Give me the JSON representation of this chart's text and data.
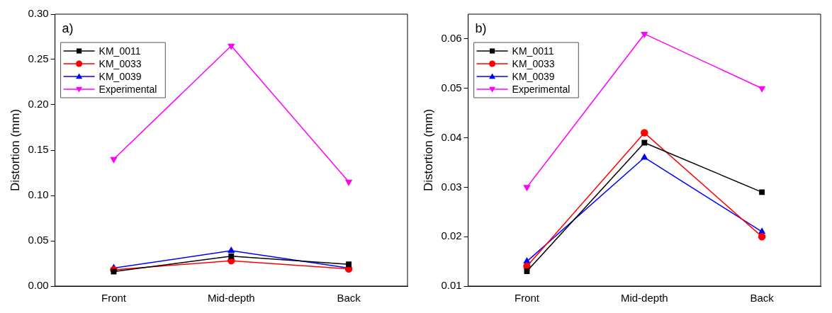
{
  "chart_data": [
    {
      "type": "line",
      "annotations": [
        "a)"
      ],
      "ylabel": "Distortion (mm)",
      "categories": [
        "Front",
        "Mid-depth",
        "Back"
      ],
      "ylim": [
        0,
        0.3
      ],
      "yticks": [
        {
          "value": 0,
          "label": "0.00"
        },
        0.05,
        {
          "value": 0.1,
          "label": "0.10"
        },
        0.15,
        {
          "value": 0.2,
          "label": "0.20"
        },
        0.25,
        {
          "value": 0.3,
          "label": "0.30"
        }
      ],
      "grid": false,
      "legend": "top left",
      "line_style": "solid",
      "series": [
        {
          "name": "KM_0011",
          "color": "#000000",
          "marker": "square",
          "values": [
            0.016,
            0.033,
            0.024
          ]
        },
        {
          "name": "KM_0033",
          "color": "#ff0000",
          "marker": "circle",
          "values": [
            0.018,
            0.028,
            0.019
          ]
        },
        {
          "name": "KM_0039",
          "color": "#0000ff",
          "marker": "triangle",
          "values": [
            0.02,
            0.039,
            0.02
          ]
        },
        {
          "name": "Experimental",
          "color": "#ff00ff",
          "marker": "triangle-down",
          "values": [
            0.14,
            0.265,
            0.115
          ]
        }
      ]
    },
    {
      "type": "line",
      "annotations": [
        "b)"
      ],
      "ylabel": "Distortion (mm)",
      "categories": [
        "Front",
        "Mid-depth",
        "Back"
      ],
      "ylim": [
        0.01,
        0.065
      ],
      "yticks": [
        0.01,
        0.02,
        0.03,
        0.04,
        0.05,
        0.06
      ],
      "grid": false,
      "legend": "top left",
      "line_style": "solid",
      "series": [
        {
          "name": "KM_0011",
          "color": "#000000",
          "marker": "square",
          "values": [
            0.013,
            0.039,
            0.029
          ]
        },
        {
          "name": "KM_0033",
          "color": "#ff0000",
          "marker": "circle",
          "values": [
            0.014,
            0.041,
            0.02
          ]
        },
        {
          "name": "KM_0039",
          "color": "#0000ff",
          "marker": "triangle",
          "values": [
            0.015,
            0.036,
            0.021
          ]
        },
        {
          "name": "Experimental",
          "color": "#ff00ff",
          "marker": "triangle-down",
          "values": [
            0.03,
            0.061,
            0.05
          ]
        }
      ]
    }
  ]
}
